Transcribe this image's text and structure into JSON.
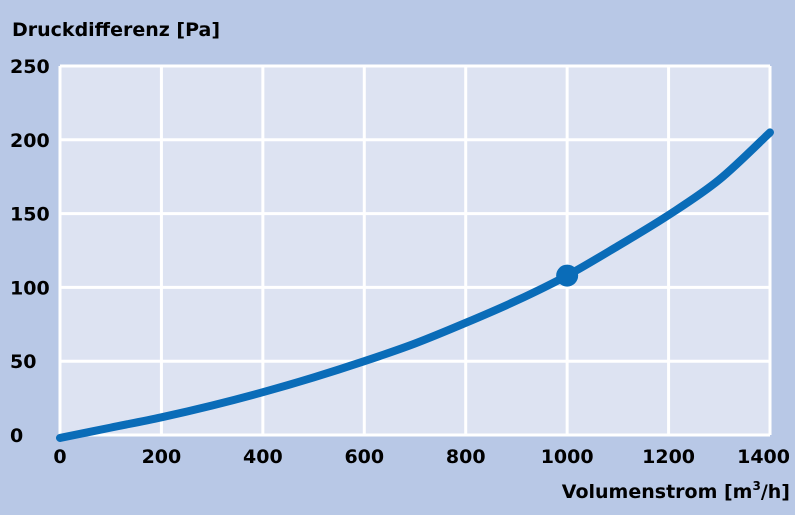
{
  "colors": {
    "background": "#b8c8e6",
    "plot_area": "#dde3f2",
    "grid": "#ffffff",
    "series": "#0a6cb8"
  },
  "chart_data": {
    "type": "line",
    "title": "",
    "ylabel": "Druckdifferenz [Pa]",
    "xlabel_main": "Volumenstrom [m",
    "xlabel_sup": "3",
    "xlabel_tail": "/h]",
    "xlim": [
      0,
      1400
    ],
    "ylim": [
      0,
      250
    ],
    "x_ticks": [
      0,
      200,
      400,
      600,
      800,
      1000,
      1200,
      1400
    ],
    "y_ticks": [
      0,
      50,
      100,
      150,
      200,
      250
    ],
    "grid": true,
    "legend": "none",
    "series": [
      {
        "x": [
          0,
          100,
          200,
          300,
          400,
          500,
          600,
          700,
          800,
          900,
          1000,
          1100,
          1200,
          1300,
          1400
        ],
        "values": [
          -2,
          5,
          12,
          20,
          29,
          39,
          50,
          62,
          76,
          91,
          108,
          128,
          149,
          173,
          205
        ]
      }
    ],
    "marker": {
      "x": 1000,
      "y": 108
    }
  }
}
